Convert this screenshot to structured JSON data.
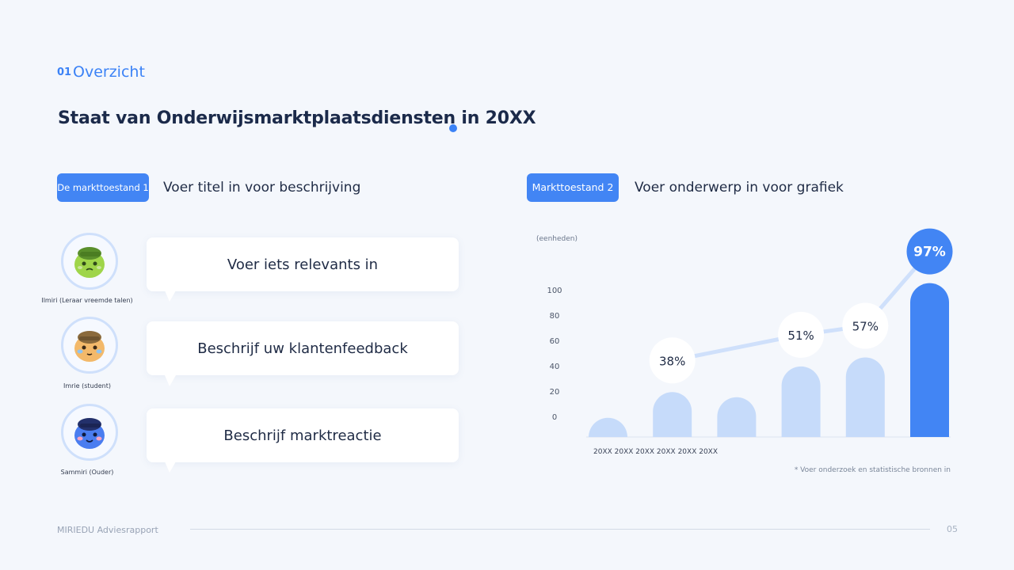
{
  "header": {
    "section_number": "01",
    "section_title": "Overzicht",
    "page_title": "Staat van Onderwijsmarktplaatsdiensten in 20XX"
  },
  "left_panel": {
    "pill": "De markttoestand 1",
    "heading": "Voer titel in voor beschrijving",
    "items": [
      {
        "avatar_label": "Ilmiri (Leraar vreemde talen)",
        "avatar_icon": "green-character-icon",
        "text": "Voer iets relevants in"
      },
      {
        "avatar_label": "Imrie (student)",
        "avatar_icon": "orange-character-icon",
        "text": "Beschrijf uw klantenfeedback"
      },
      {
        "avatar_label": "Sammiri (Ouder)",
        "avatar_icon": "blue-character-icon",
        "text": "Beschrijf marktreactie"
      }
    ]
  },
  "right_panel": {
    "pill": "Markttoestand 2",
    "heading": "Voer onderwerp in voor grafiek",
    "unit_label": "(eenheden)",
    "footnote": "* Voer onderzoek en statistische bronnen in"
  },
  "chart_data": {
    "type": "bar",
    "y_ticks": [
      "100",
      "80",
      "60",
      "40",
      "20",
      "0"
    ],
    "x_label_text": "20XX 20XX 20XX 20XX 20XX 20XX",
    "values": [
      15,
      35,
      31,
      55,
      62,
      120
    ],
    "highlight_index": 5,
    "trend_labels": [
      {
        "index": 1,
        "label": "38%"
      },
      {
        "index": 3,
        "label": "51%"
      },
      {
        "index": 4,
        "label": "57%"
      },
      {
        "index": 5,
        "label": "97%"
      }
    ],
    "colors": {
      "bar": "#c6dbfa",
      "highlight": "#4285f4",
      "trend": "#cfe0fb"
    }
  },
  "footer": {
    "left": "MIRIEDU Adviesrapport",
    "page_number": "05"
  }
}
